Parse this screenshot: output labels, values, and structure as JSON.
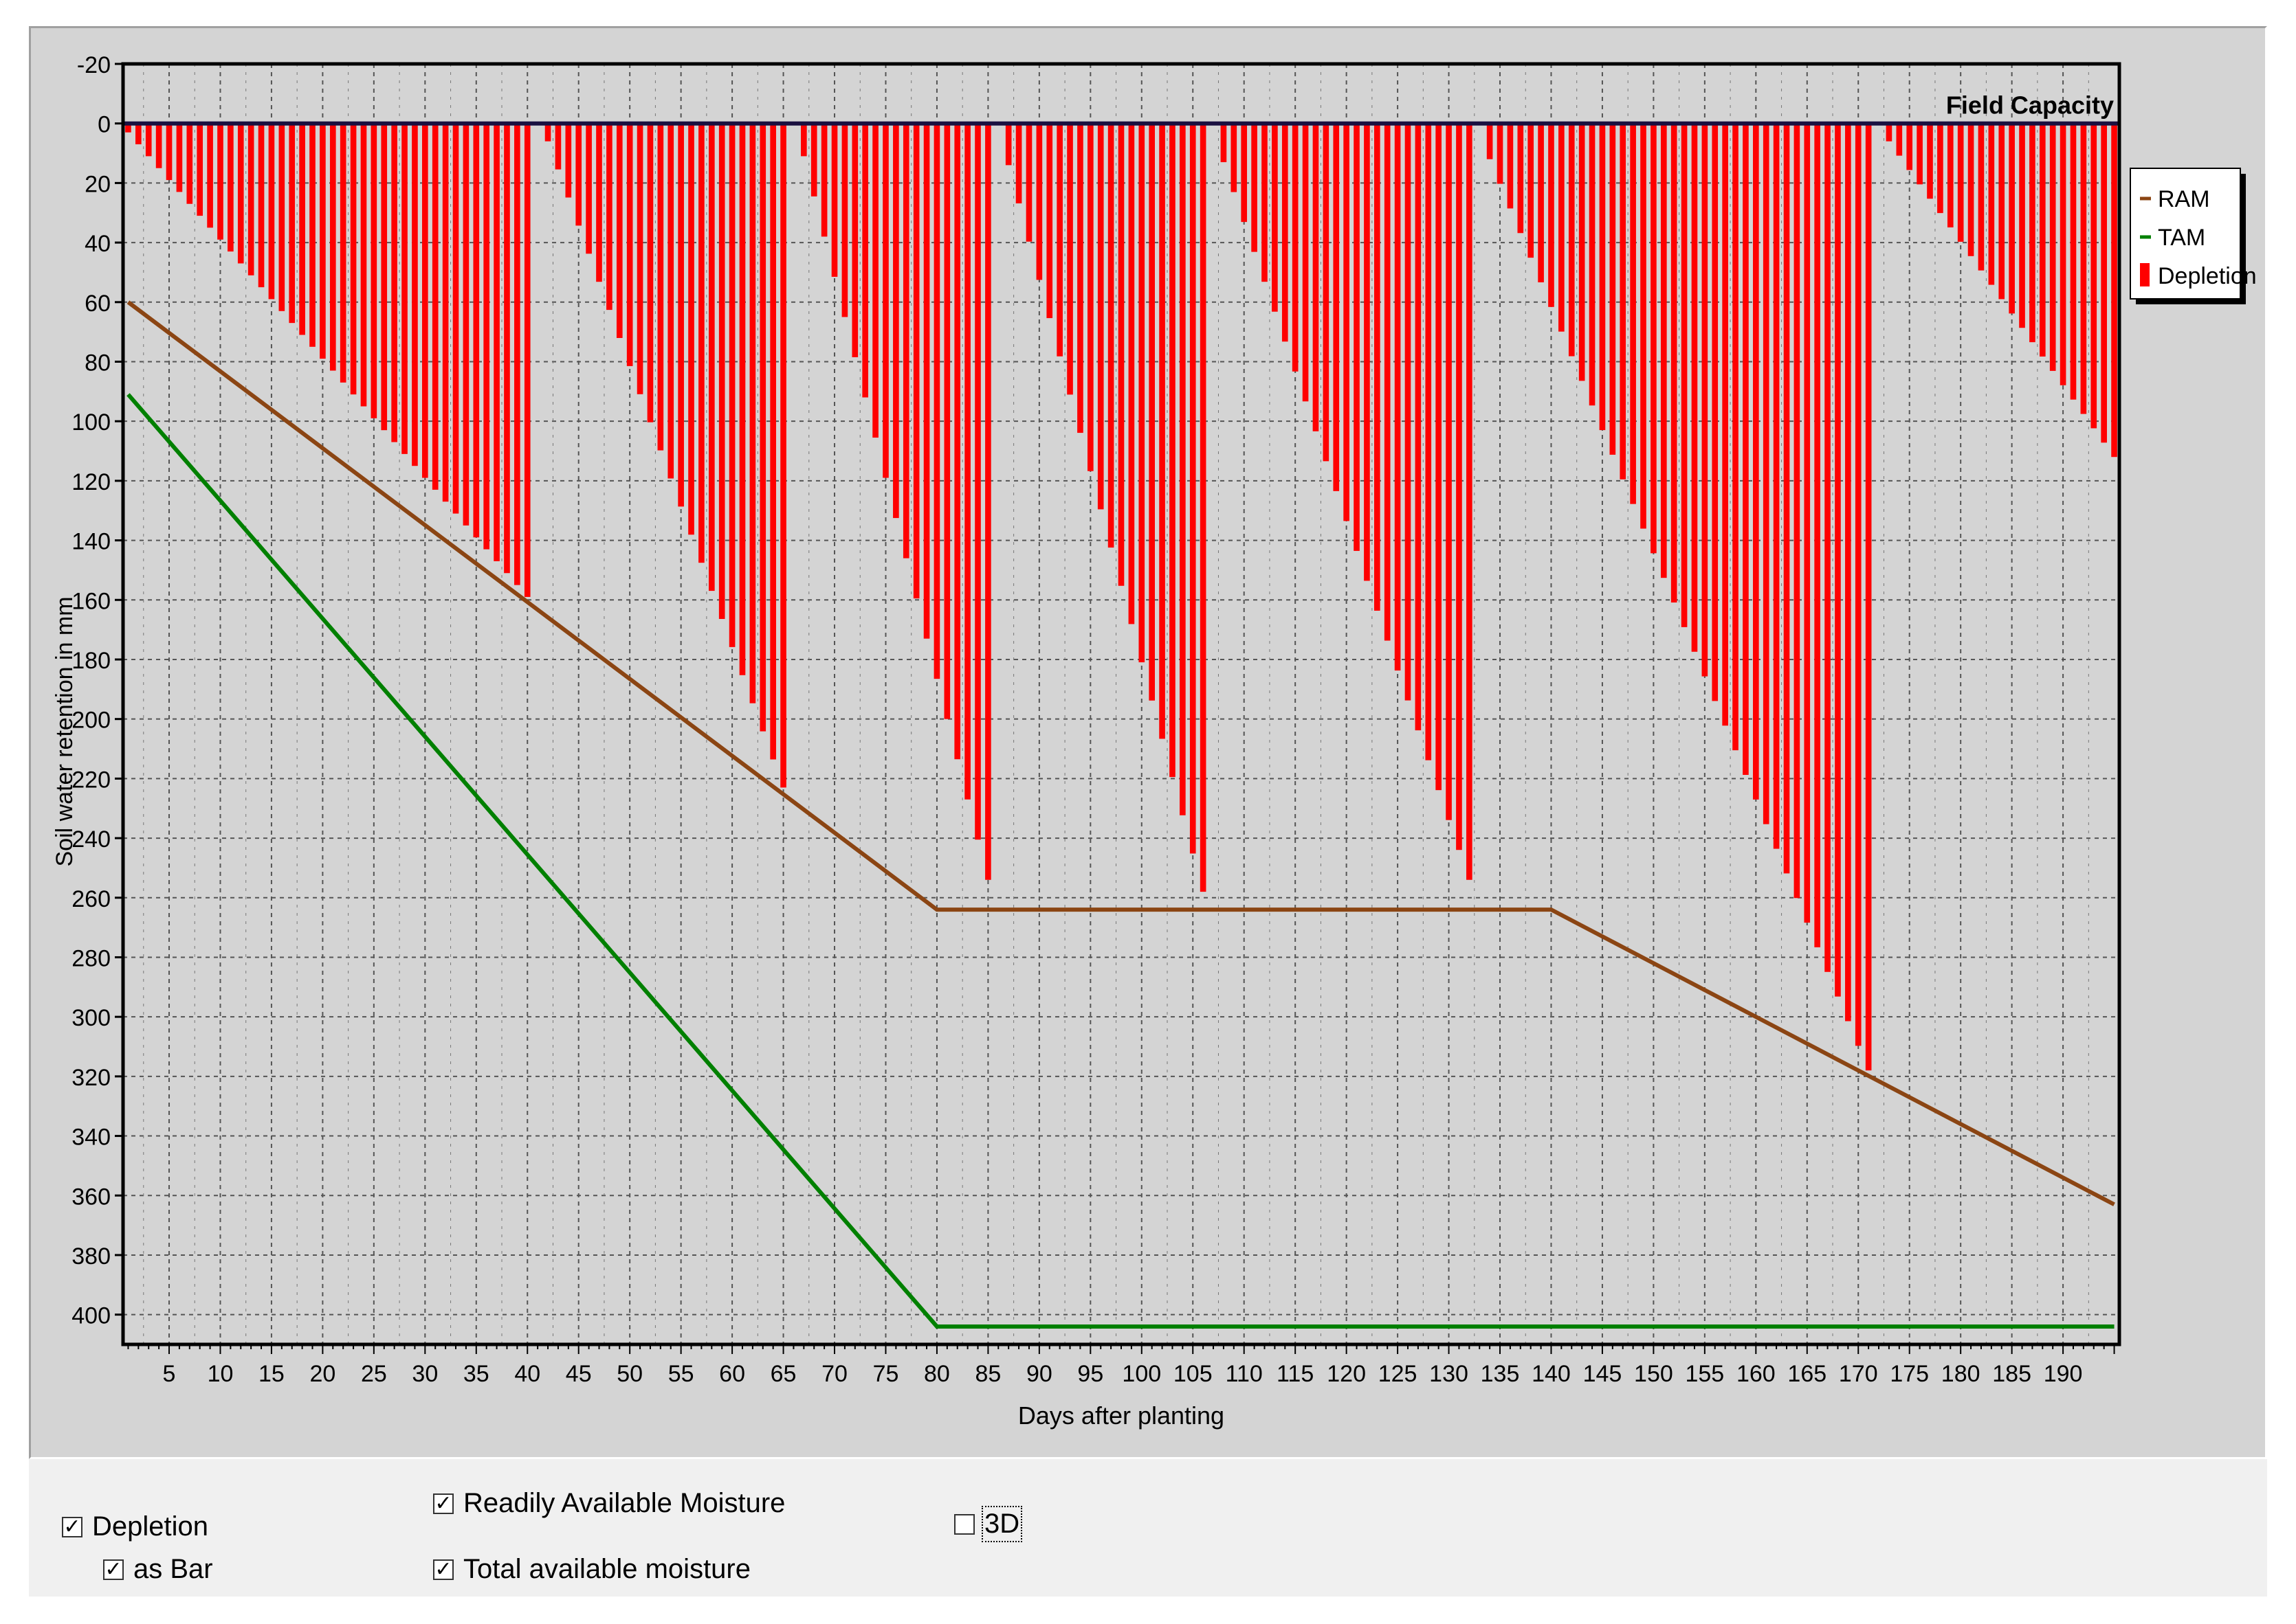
{
  "chart_data": {
    "type": "bar",
    "title": "",
    "xlabel": "Days after planting",
    "ylabel": "Soil water retention in mm",
    "xlim": [
      0.5,
      195.5
    ],
    "ylim": [
      -20,
      410
    ],
    "y_inverted": true,
    "y_ticks": [
      -20,
      0,
      20,
      40,
      60,
      80,
      100,
      120,
      140,
      160,
      180,
      200,
      220,
      240,
      260,
      280,
      300,
      320,
      340,
      360,
      380,
      400
    ],
    "x_ticks": [
      5,
      10,
      15,
      20,
      25,
      30,
      35,
      40,
      45,
      50,
      55,
      60,
      65,
      70,
      75,
      80,
      85,
      90,
      95,
      100,
      105,
      110,
      115,
      120,
      125,
      130,
      135,
      140,
      145,
      150,
      155,
      160,
      165,
      170,
      175,
      180,
      185,
      190
    ],
    "grid": true,
    "legend_position": "right",
    "reference_line": {
      "label": "Field Capacity",
      "y": 0
    },
    "series": [
      {
        "name": "RAM",
        "type": "line",
        "color": "#8b4513",
        "points": [
          [
            1,
            60
          ],
          [
            80,
            264
          ],
          [
            140,
            264
          ],
          [
            195,
            363
          ]
        ]
      },
      {
        "name": "TAM",
        "type": "line",
        "color": "#008000",
        "points": [
          [
            1,
            91
          ],
          [
            80,
            404
          ],
          [
            195,
            404
          ]
        ]
      },
      {
        "name": "Depletion",
        "type": "bar",
        "color": "#ff0000",
        "cycles": [
          {
            "start_day": 1,
            "end_day": 40,
            "start_value": 3,
            "end_value": 159
          },
          {
            "start_day": 42,
            "end_day": 65,
            "start_value": 6,
            "end_value": 223
          },
          {
            "start_day": 67,
            "end_day": 85,
            "start_value": 11,
            "end_value": 254
          },
          {
            "start_day": 87,
            "end_day": 106,
            "start_value": 14,
            "end_value": 258
          },
          {
            "start_day": 108,
            "end_day": 132,
            "start_value": 13,
            "end_value": 254
          },
          {
            "start_day": 134,
            "end_day": 171,
            "start_value": 12,
            "end_value": 318
          },
          {
            "start_day": 173,
            "end_day": 195,
            "start_value": 6,
            "end_value": 112
          }
        ]
      }
    ]
  },
  "labels": {
    "field_capacity": "Field Capacity",
    "xlabel": "Days after planting",
    "ylabel": "Soil water retention in mm",
    "legend": [
      "RAM",
      "TAM",
      "Depletion"
    ]
  },
  "controls": {
    "depletion": {
      "label": "Depletion",
      "checked": true
    },
    "as_bar": {
      "label": "as Bar",
      "checked": true
    },
    "ram": {
      "label": "Readily Available Moisture",
      "checked": true
    },
    "tam": {
      "label": "Total available moisture",
      "checked": true
    },
    "three_d": {
      "label": "3D",
      "checked": false
    }
  }
}
